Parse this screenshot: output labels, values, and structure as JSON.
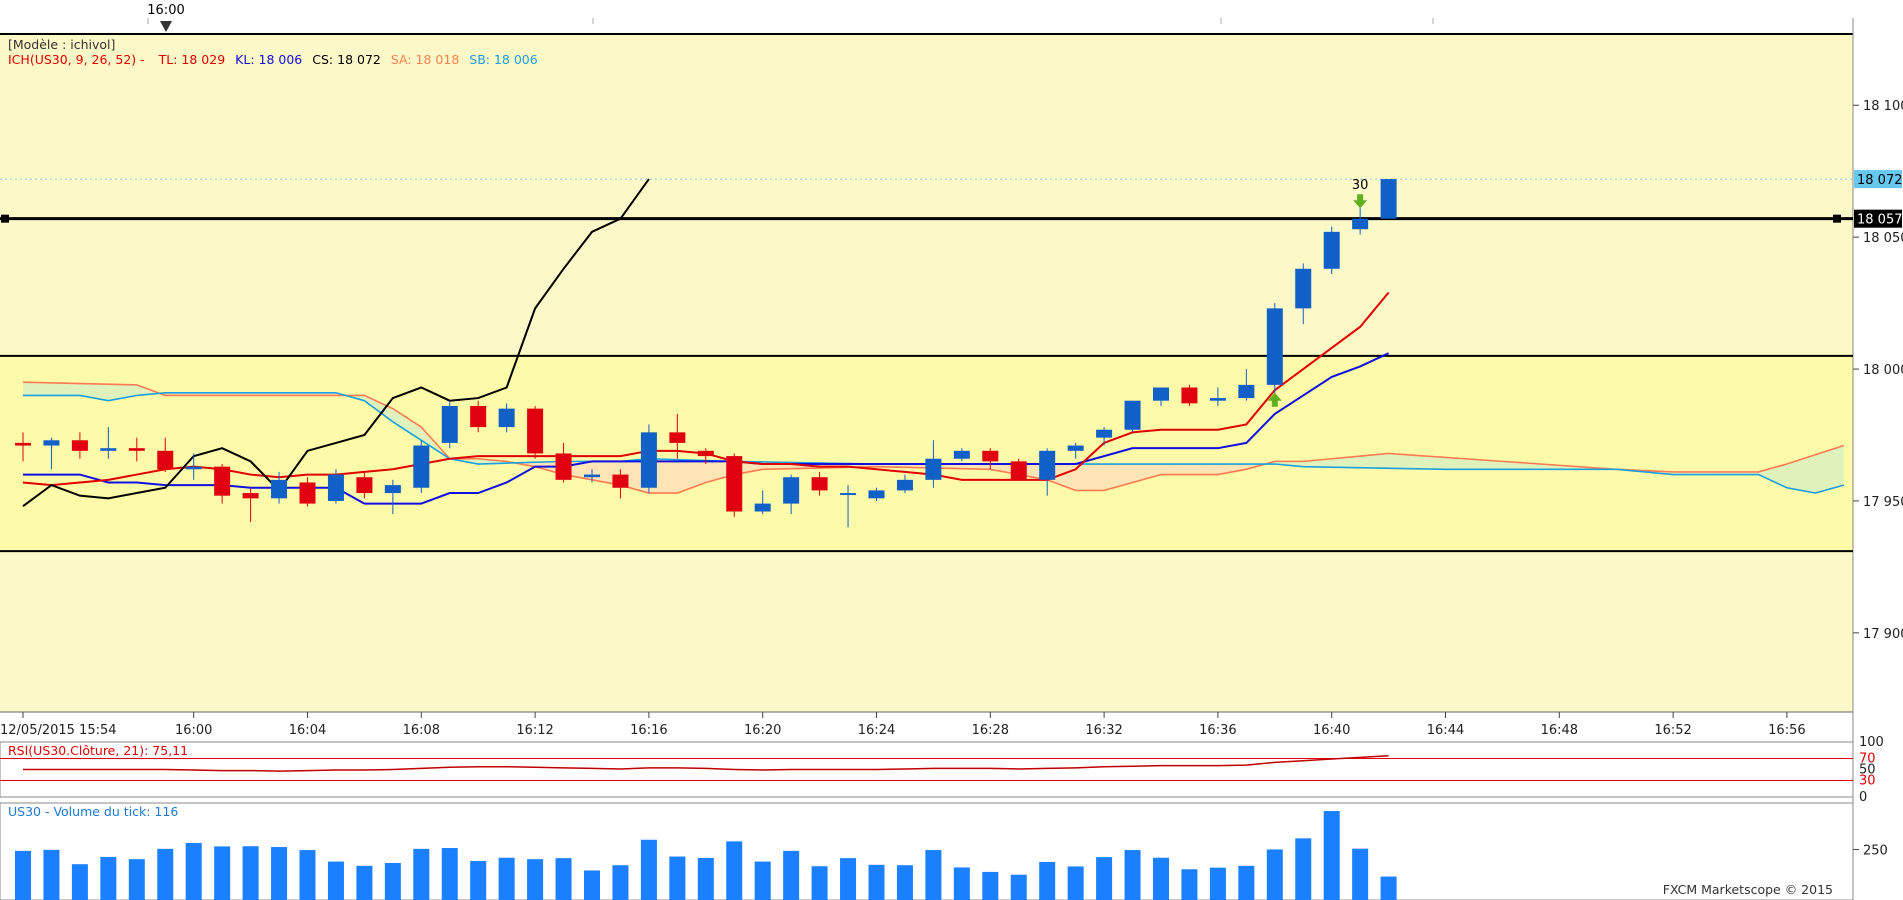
{
  "chart_data": {
    "type": "candlestick",
    "instrument": "US30",
    "template_label": "[Modèle : ichivol]",
    "top_time_marker": "16:00",
    "ichimoku_legend": {
      "name": "ICH(US30, 9, 26, 52) -",
      "items": [
        {
          "label": "TL: 18 029",
          "color": "#e00000"
        },
        {
          "label": "KL: 18 006",
          "color": "#1010e0"
        },
        {
          "label": "CS: 18 072",
          "color": "#000000"
        },
        {
          "label": "SA: 18 018",
          "color": "#ff8050"
        },
        {
          "label": "SB: 18 006",
          "color": "#1aa0e0"
        }
      ]
    },
    "price_axis": {
      "ticks": [
        {
          "value": 18100,
          "label": "18 100"
        },
        {
          "value": 18050,
          "label": "18 050"
        },
        {
          "value": 18000,
          "label": "18 000"
        },
        {
          "value": 17950,
          "label": "17 950"
        },
        {
          "value": 17900,
          "label": "17 900"
        }
      ],
      "ylim": [
        17870,
        18127
      ],
      "last_price": {
        "value": 18072,
        "label": "18 072",
        "color": "#66c8f0"
      },
      "hline_price": {
        "value": 18057,
        "label": "18 057"
      }
    },
    "horizontal_lines": [
      18057,
      18005,
      17931
    ],
    "yellow_band": [
      17931,
      18005
    ],
    "time_axis": {
      "labels": [
        "12/05/2015 15:54",
        "16:00",
        "16:04",
        "16:08",
        "16:12",
        "16:16",
        "16:20",
        "16:24",
        "16:28",
        "16:32",
        "16:36",
        "16:40",
        "16:44",
        "16:48",
        "16:52",
        "16:56"
      ],
      "minutes": [
        0,
        6,
        10,
        14,
        18,
        22,
        26,
        30,
        34,
        38,
        42,
        46,
        50,
        54,
        58,
        62
      ]
    },
    "candles": [
      {
        "t": 0,
        "o": 17972,
        "h": 17976,
        "l": 17965,
        "c": 17971
      },
      {
        "t": 1,
        "o": 17971,
        "h": 17974,
        "l": 17962,
        "c": 17973
      },
      {
        "t": 2,
        "o": 17973,
        "h": 17976,
        "l": 17966,
        "c": 17969
      },
      {
        "t": 3,
        "o": 17969,
        "h": 17978,
        "l": 17966,
        "c": 17970
      },
      {
        "t": 4,
        "o": 17970,
        "h": 17974,
        "l": 17965,
        "c": 17969
      },
      {
        "t": 5,
        "o": 17969,
        "h": 17974,
        "l": 17961,
        "c": 17962
      },
      {
        "t": 6,
        "o": 17962,
        "h": 17968,
        "l": 17958,
        "c": 17963
      },
      {
        "t": 7,
        "o": 17963,
        "h": 17964,
        "l": 17949,
        "c": 17952
      },
      {
        "t": 8,
        "o": 17953,
        "h": 17955,
        "l": 17942,
        "c": 17951
      },
      {
        "t": 9,
        "o": 17951,
        "h": 17961,
        "l": 17949,
        "c": 17958
      },
      {
        "t": 10,
        "o": 17957,
        "h": 17959,
        "l": 17948,
        "c": 17949
      },
      {
        "t": 11,
        "o": 17950,
        "h": 17962,
        "l": 17949,
        "c": 17960
      },
      {
        "t": 12,
        "o": 17959,
        "h": 17961,
        "l": 17951,
        "c": 17953
      },
      {
        "t": 13,
        "o": 17953,
        "h": 17958,
        "l": 17945,
        "c": 17956
      },
      {
        "t": 14,
        "o": 17955,
        "h": 17973,
        "l": 17953,
        "c": 17971
      },
      {
        "t": 15,
        "o": 17972,
        "h": 17988,
        "l": 17970,
        "c": 17986
      },
      {
        "t": 16,
        "o": 17986,
        "h": 17988,
        "l": 17976,
        "c": 17978
      },
      {
        "t": 17,
        "o": 17978,
        "h": 17987,
        "l": 17976,
        "c": 17985
      },
      {
        "t": 18,
        "o": 17985,
        "h": 17986,
        "l": 17966,
        "c": 17968
      },
      {
        "t": 19,
        "o": 17968,
        "h": 17972,
        "l": 17957,
        "c": 17958
      },
      {
        "t": 20,
        "o": 17959,
        "h": 17962,
        "l": 17957,
        "c": 17960
      },
      {
        "t": 21,
        "o": 17960,
        "h": 17962,
        "l": 17951,
        "c": 17955
      },
      {
        "t": 22,
        "o": 17955,
        "h": 17979,
        "l": 17953,
        "c": 17976
      },
      {
        "t": 23,
        "o": 17976,
        "h": 17983,
        "l": 17966,
        "c": 17972
      },
      {
        "t": 24,
        "o": 17969,
        "h": 17970,
        "l": 17964,
        "c": 17967
      },
      {
        "t": 25,
        "o": 17967,
        "h": 17968,
        "l": 17944,
        "c": 17946
      },
      {
        "t": 26,
        "o": 17946,
        "h": 17954,
        "l": 17945,
        "c": 17949
      },
      {
        "t": 27,
        "o": 17949,
        "h": 17960,
        "l": 17945,
        "c": 17959
      },
      {
        "t": 28,
        "o": 17959,
        "h": 17961,
        "l": 17952,
        "c": 17954
      },
      {
        "t": 29,
        "o": 17953,
        "h": 17956,
        "l": 17940,
        "c": 17953
      },
      {
        "t": 30,
        "o": 17951,
        "h": 17955,
        "l": 17950,
        "c": 17954
      },
      {
        "t": 31,
        "o": 17954,
        "h": 17960,
        "l": 17953,
        "c": 17958
      },
      {
        "t": 32,
        "o": 17958,
        "h": 17973,
        "l": 17955,
        "c": 17966
      },
      {
        "t": 33,
        "o": 17966,
        "h": 17970,
        "l": 17965,
        "c": 17969
      },
      {
        "t": 34,
        "o": 17969,
        "h": 17970,
        "l": 17962,
        "c": 17965
      },
      {
        "t": 35,
        "o": 17965,
        "h": 17966,
        "l": 17958,
        "c": 17958
      },
      {
        "t": 36,
        "o": 17958,
        "h": 17970,
        "l": 17952,
        "c": 17969
      },
      {
        "t": 37,
        "o": 17969,
        "h": 17972,
        "l": 17966,
        "c": 17971
      },
      {
        "t": 38,
        "o": 17974,
        "h": 17978,
        "l": 17971,
        "c": 17977
      },
      {
        "t": 39,
        "o": 17977,
        "h": 17988,
        "l": 17976,
        "c": 17988
      },
      {
        "t": 40,
        "o": 17988,
        "h": 17993,
        "l": 17986,
        "c": 17993
      },
      {
        "t": 41,
        "o": 17993,
        "h": 17994,
        "l": 17986,
        "c": 17987
      },
      {
        "t": 42,
        "o": 17988,
        "h": 17993,
        "l": 17986,
        "c": 17989
      },
      {
        "t": 43,
        "o": 17989,
        "h": 18000,
        "l": 17988,
        "c": 17994
      },
      {
        "t": 44,
        "o": 17994,
        "h": 18025,
        "l": 17990,
        "c": 18023
      },
      {
        "t": 45,
        "o": 18023,
        "h": 18040,
        "l": 18017,
        "c": 18038
      },
      {
        "t": 46,
        "o": 18038,
        "h": 18054,
        "l": 18036,
        "c": 18052
      },
      {
        "t": 47,
        "o": 18053,
        "h": 18061,
        "l": 18051,
        "c": 18057
      },
      {
        "t": 48,
        "o": 18057,
        "h": 18072,
        "l": 18057,
        "c": 18072
      }
    ],
    "tenkan": [
      17957,
      17956,
      17957,
      17958,
      17960,
      17962,
      17963,
      17962,
      17960,
      17959,
      17960,
      17960,
      17961,
      17962,
      17964,
      17966,
      17967,
      17967,
      17967,
      17967,
      17967,
      17967,
      17969,
      17969,
      17968,
      17965,
      17964,
      17964,
      17963,
      17963,
      17962,
      17961,
      17960,
      17958,
      17958,
      17958,
      17958,
      17962,
      17972,
      17976,
      17977,
      17977,
      17977,
      17979,
      17992,
      18000,
      18008,
      18016,
      18029
    ],
    "kijun": [
      17960,
      17960,
      17960,
      17957,
      17957,
      17956,
      17956,
      17956,
      17955,
      17955,
      17955,
      17955,
      17949,
      17949,
      17949,
      17953,
      17953,
      17957,
      17963,
      17963,
      17965,
      17965,
      17965,
      17965,
      17965,
      17965,
      17964,
      17964,
      17964,
      17964,
      17964,
      17964,
      17964,
      17964,
      17964,
      17964,
      17964,
      17964,
      17967,
      17970,
      17970,
      17970,
      17970,
      17972,
      17983,
      17990,
      17997,
      18001,
      18006
    ],
    "chikou": [
      {
        "t": 0,
        "v": 17948
      },
      {
        "t": 1,
        "v": 17956
      },
      {
        "t": 2,
        "v": 17952
      },
      {
        "t": 3,
        "v": 17951
      },
      {
        "t": 4,
        "v": 17953
      },
      {
        "t": 5,
        "v": 17955
      },
      {
        "t": 6,
        "v": 17967
      },
      {
        "t": 7,
        "v": 17970
      },
      {
        "t": 8,
        "v": 17965
      },
      {
        "t": 9,
        "v": 17954
      },
      {
        "t": 10,
        "v": 17969
      },
      {
        "t": 11,
        "v": 17972
      },
      {
        "t": 12,
        "v": 17975
      },
      {
        "t": 13,
        "v": 17989
      },
      {
        "t": 14,
        "v": 17993
      },
      {
        "t": 15,
        "v": 17988
      },
      {
        "t": 16,
        "v": 17989
      },
      {
        "t": 17,
        "v": 17993
      },
      {
        "t": 18,
        "v": 18023
      },
      {
        "t": 19,
        "v": 18038
      },
      {
        "t": 20,
        "v": 18052
      },
      {
        "t": 21,
        "v": 18057
      },
      {
        "t": 22,
        "v": 18072
      }
    ],
    "senkou_a": [
      {
        "t": 0,
        "v": 17995
      },
      {
        "t": 4,
        "v": 17994
      },
      {
        "t": 5,
        "v": 17990
      },
      {
        "t": 8,
        "v": 17990
      },
      {
        "t": 12,
        "v": 17990
      },
      {
        "t": 13,
        "v": 17985
      },
      {
        "t": 14,
        "v": 17978
      },
      {
        "t": 15,
        "v": 17966
      },
      {
        "t": 16,
        "v": 17966
      },
      {
        "t": 17,
        "v": 17965
      },
      {
        "t": 18,
        "v": 17963
      },
      {
        "t": 19,
        "v": 17960
      },
      {
        "t": 20,
        "v": 17958
      },
      {
        "t": 21,
        "v": 17956
      },
      {
        "t": 22,
        "v": 17953
      },
      {
        "t": 23,
        "v": 17953
      },
      {
        "t": 24,
        "v": 17957
      },
      {
        "t": 25,
        "v": 17960
      },
      {
        "t": 26,
        "v": 17962
      },
      {
        "t": 30,
        "v": 17963
      },
      {
        "t": 34,
        "v": 17962
      },
      {
        "t": 36,
        "v": 17958
      },
      {
        "t": 37,
        "v": 17954
      },
      {
        "t": 38,
        "v": 17954
      },
      {
        "t": 40,
        "v": 17960
      },
      {
        "t": 41,
        "v": 17960
      },
      {
        "t": 42,
        "v": 17960
      },
      {
        "t": 43,
        "v": 17962
      },
      {
        "t": 44,
        "v": 17965
      },
      {
        "t": 45,
        "v": 17965
      },
      {
        "t": 46,
        "v": 17966
      },
      {
        "t": 48,
        "v": 17968
      },
      {
        "t": 52,
        "v": 17965
      },
      {
        "t": 56,
        "v": 17962
      },
      {
        "t": 58,
        "v": 17961
      },
      {
        "t": 61,
        "v": 17961
      },
      {
        "t": 62,
        "v": 17964
      },
      {
        "t": 64,
        "v": 17971
      }
    ],
    "senkou_b": [
      {
        "t": 0,
        "v": 17990
      },
      {
        "t": 2,
        "v": 17990
      },
      {
        "t": 3,
        "v": 17988
      },
      {
        "t": 4,
        "v": 17990
      },
      {
        "t": 5,
        "v": 17991
      },
      {
        "t": 8,
        "v": 17991
      },
      {
        "t": 11,
        "v": 17991
      },
      {
        "t": 12,
        "v": 17988
      },
      {
        "t": 13,
        "v": 17980
      },
      {
        "t": 14,
        "v": 17973
      },
      {
        "t": 15,
        "v": 17966
      },
      {
        "t": 16,
        "v": 17964
      },
      {
        "t": 19,
        "v": 17965
      },
      {
        "t": 21,
        "v": 17965
      },
      {
        "t": 22,
        "v": 17966
      },
      {
        "t": 25,
        "v": 17965
      },
      {
        "t": 30,
        "v": 17964
      },
      {
        "t": 40,
        "v": 17964
      },
      {
        "t": 44,
        "v": 17964
      },
      {
        "t": 45,
        "v": 17963
      },
      {
        "t": 50,
        "v": 17962
      },
      {
        "t": 56,
        "v": 17962
      },
      {
        "t": 58,
        "v": 17960
      },
      {
        "t": 61,
        "v": 17960
      },
      {
        "t": 62,
        "v": 17955
      },
      {
        "t": 63,
        "v": 17953
      },
      {
        "t": 64,
        "v": 17956
      }
    ],
    "signals": [
      {
        "t": 44,
        "price": 17988,
        "direction": "up"
      },
      {
        "t": 47,
        "price": 18064,
        "direction": "down",
        "label": "30"
      }
    ],
    "rsi": {
      "title": "RSI(US30.Clôture, 21): 75,11",
      "levels": [
        {
          "value": 100,
          "label": "100"
        },
        {
          "value": 70,
          "label": "70",
          "color": "#e00000"
        },
        {
          "value": 50,
          "label": "50"
        },
        {
          "value": 30,
          "label": "30",
          "color": "#e00000"
        },
        {
          "value": 0,
          "label": "0"
        }
      ],
      "values": [
        50,
        50,
        50,
        50,
        50,
        50,
        49,
        48,
        48,
        47,
        48,
        49,
        49,
        50,
        52,
        54,
        55,
        55,
        54,
        53,
        52,
        51,
        53,
        53,
        52,
        50,
        49,
        50,
        50,
        50,
        50,
        51,
        52,
        52,
        52,
        51,
        52,
        53,
        55,
        56,
        57,
        57,
        57,
        58,
        63,
        66,
        69,
        72,
        75
      ]
    },
    "volume": {
      "title": "US30 - Volume du tick: 116",
      "axis_tick": {
        "value": 250,
        "label": "250"
      },
      "values": [
        243,
        248,
        177,
        213,
        202,
        253,
        282,
        265,
        266,
        262,
        247,
        190,
        169,
        183,
        253,
        257,
        193,
        209,
        202,
        207,
        146,
        172,
        298,
        215,
        208,
        290,
        190,
        243,
        167,
        207,
        174,
        172,
        247,
        161,
        139,
        125,
        188,
        166,
        212,
        247,
        209,
        152,
        160,
        169,
        250,
        305,
        440,
        254,
        116
      ]
    },
    "footer": "FXCM Marketscope © 2015"
  }
}
